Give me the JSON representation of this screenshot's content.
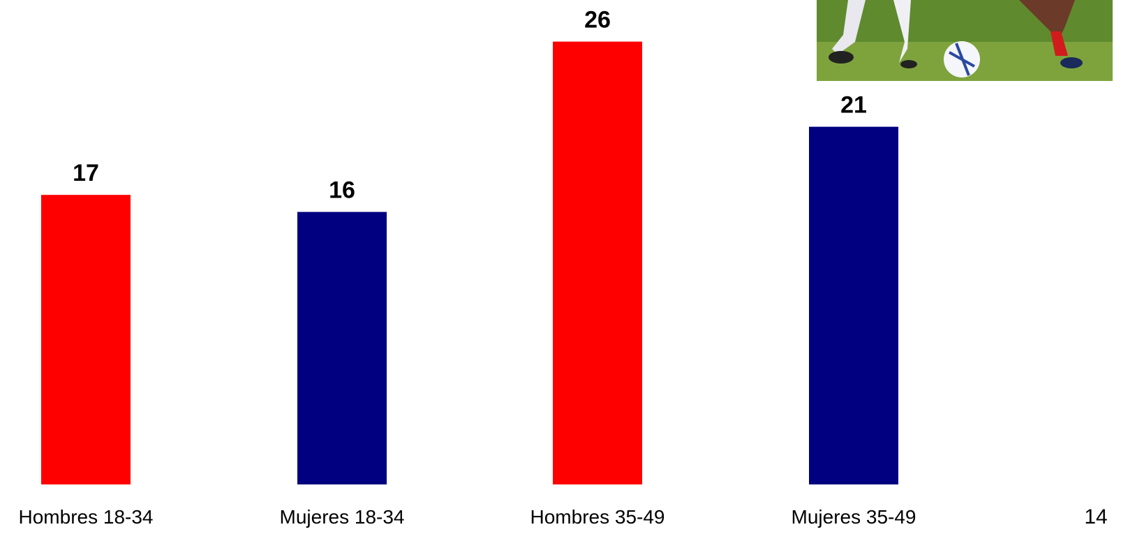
{
  "chart_data": {
    "type": "bar",
    "categories": [
      "Hombres 18-34",
      "Mujeres 18-34",
      "Hombres 35-49",
      "Mujeres 35-49"
    ],
    "values": [
      17,
      16,
      26,
      21
    ],
    "colors": [
      "#ff0000",
      "#000080",
      "#ff0000",
      "#000080"
    ]
  },
  "page_number": "14"
}
